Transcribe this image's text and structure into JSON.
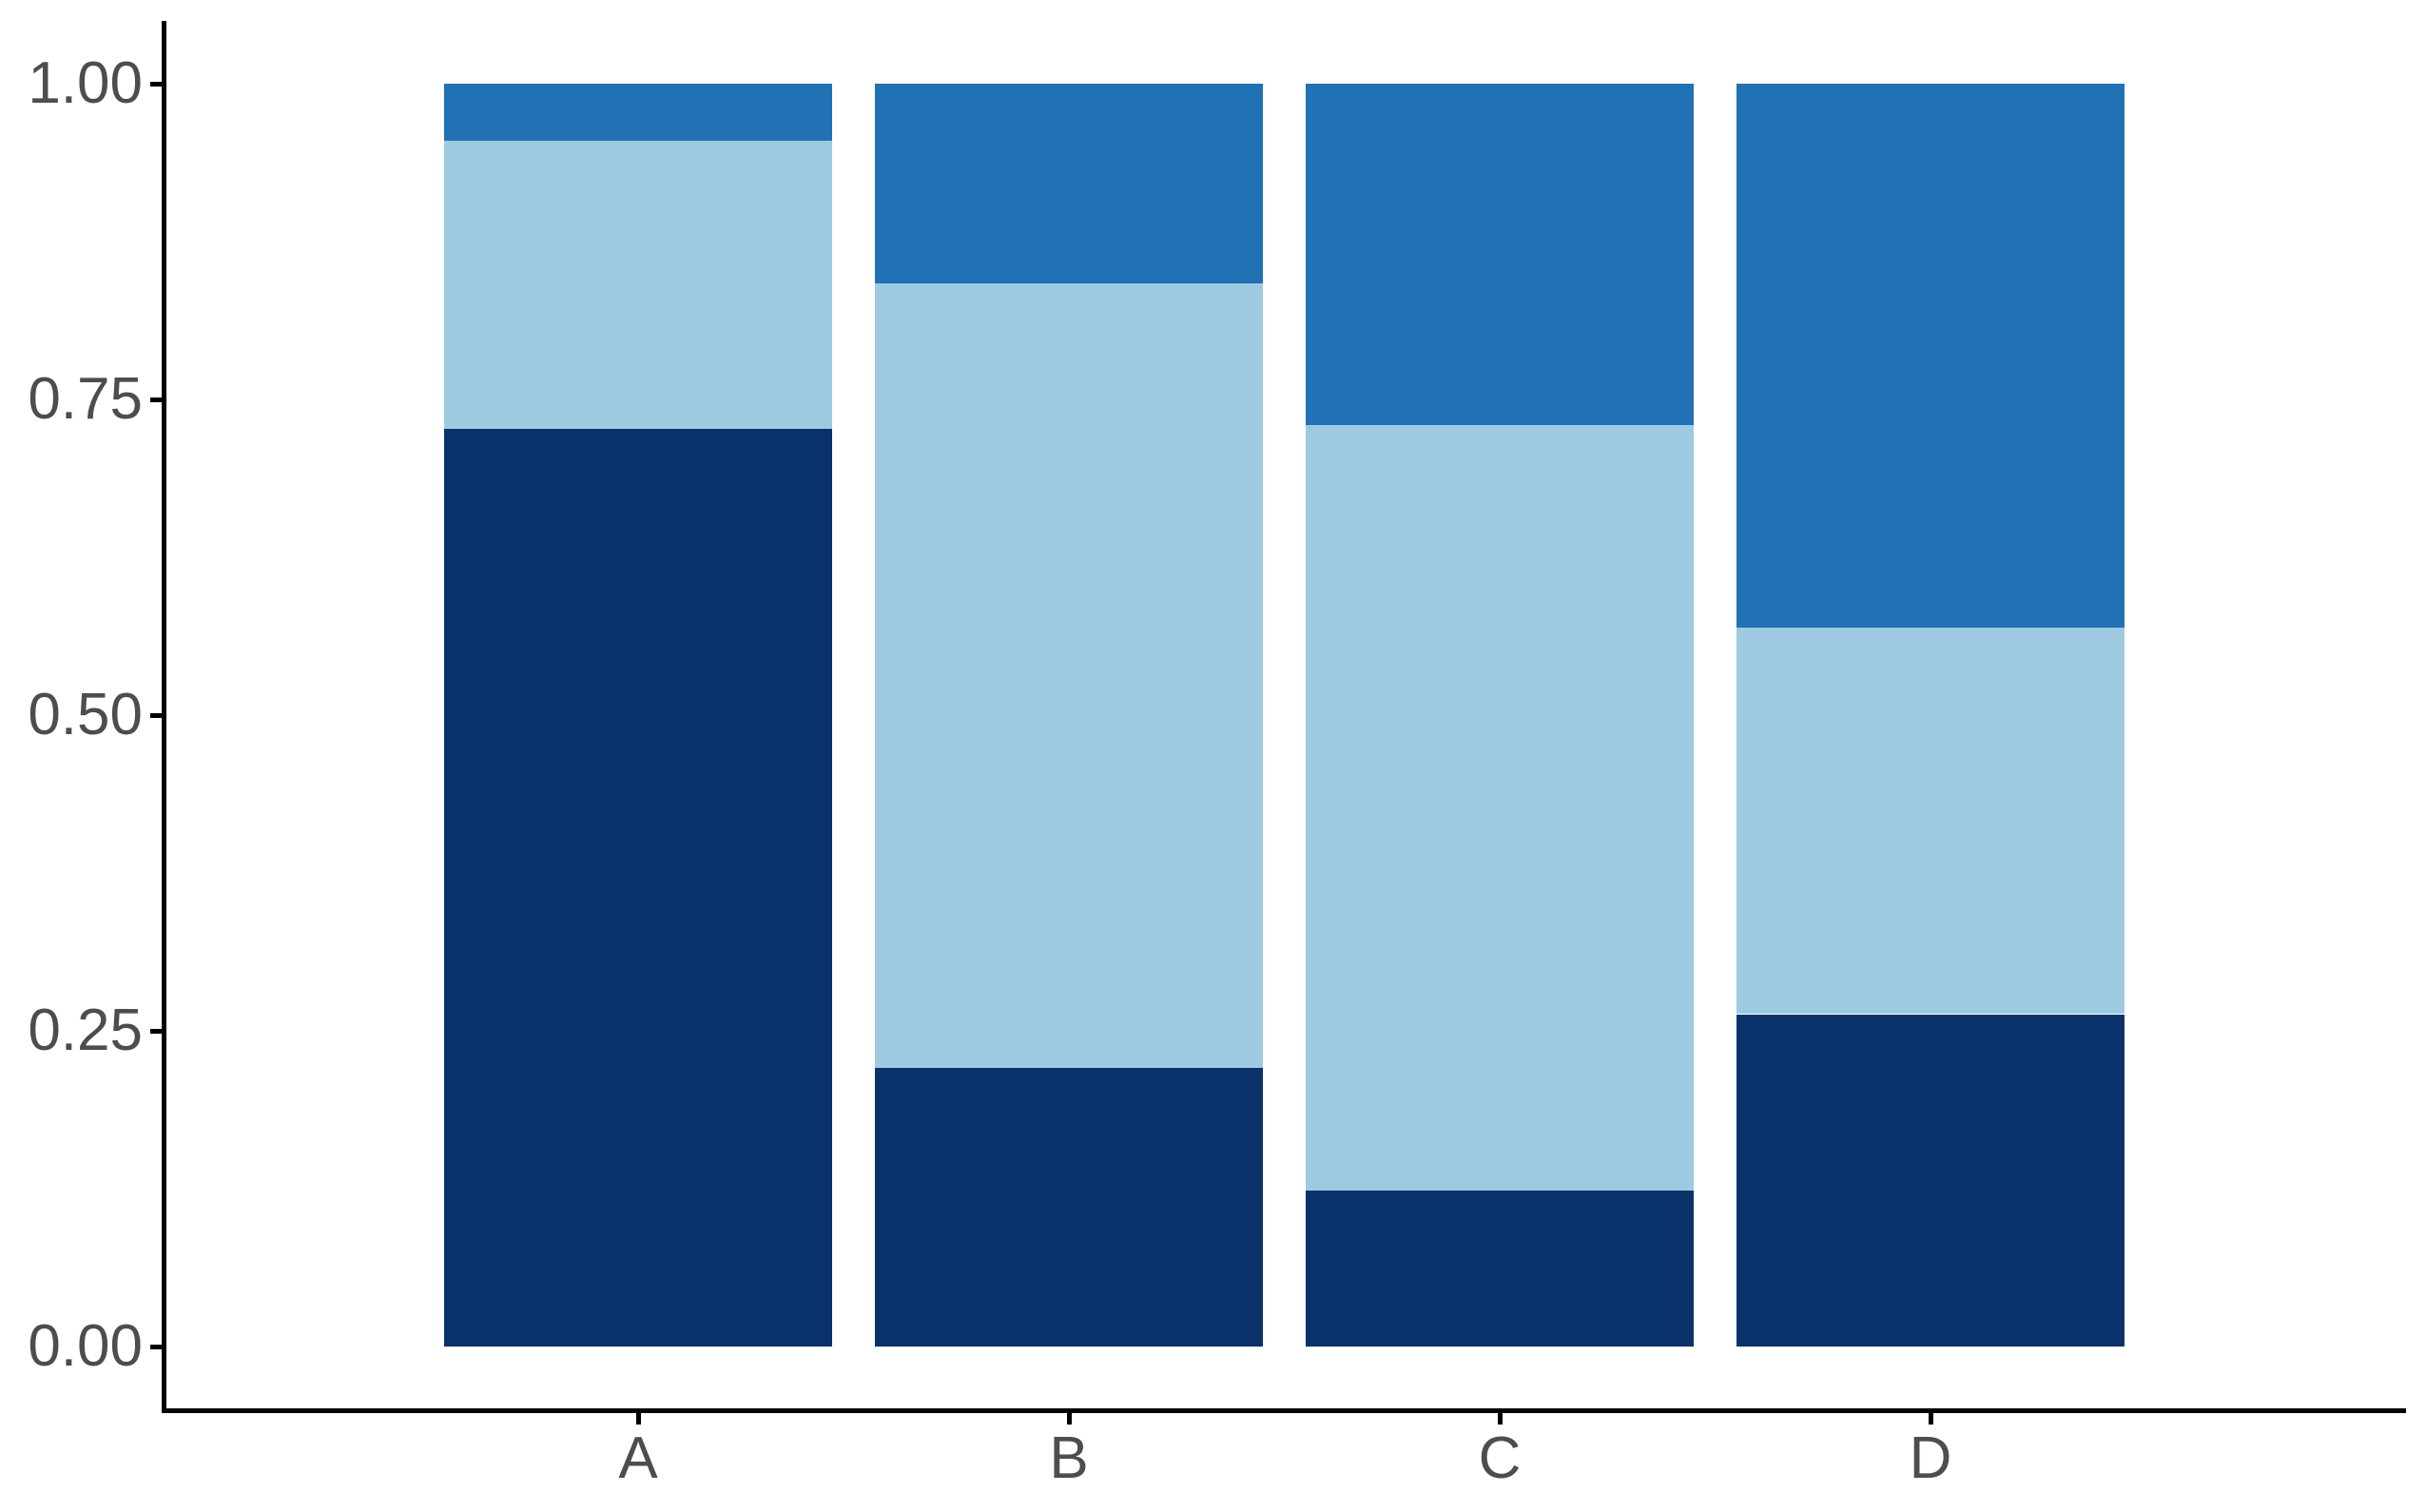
{
  "chart_data": {
    "type": "bar",
    "stacked": true,
    "normalized": true,
    "title": "",
    "xlabel": "",
    "ylabel": "",
    "categories": [
      "A",
      "B",
      "C",
      "D"
    ],
    "series": [
      {
        "name": "navy-bottom-segment",
        "color": "#09326B",
        "values": [
          0.727,
          0.221,
          0.124,
          0.263
        ]
      },
      {
        "name": "light-blue-middle-segment",
        "color": "#9ECAE1",
        "values": [
          0.228,
          0.621,
          0.606,
          0.306
        ]
      },
      {
        "name": "medium-blue-top-segment",
        "color": "#2171B5",
        "values": [
          0.045,
          0.158,
          0.27,
          0.431
        ]
      }
    ],
    "ylim": [
      0,
      1
    ],
    "y_ticks": [
      {
        "value": 0.0,
        "label": "0.00"
      },
      {
        "value": 0.25,
        "label": "0.25"
      },
      {
        "value": 0.5,
        "label": "0.50"
      },
      {
        "value": 0.75,
        "label": "0.75"
      },
      {
        "value": 1.0,
        "label": "1.00"
      }
    ],
    "grid": false,
    "legend": "none",
    "bar_width_ratio": 0.9,
    "axis_text_color": "#4D4D4D",
    "axis_line_color": "#000000",
    "background": "#FFFFFF"
  }
}
